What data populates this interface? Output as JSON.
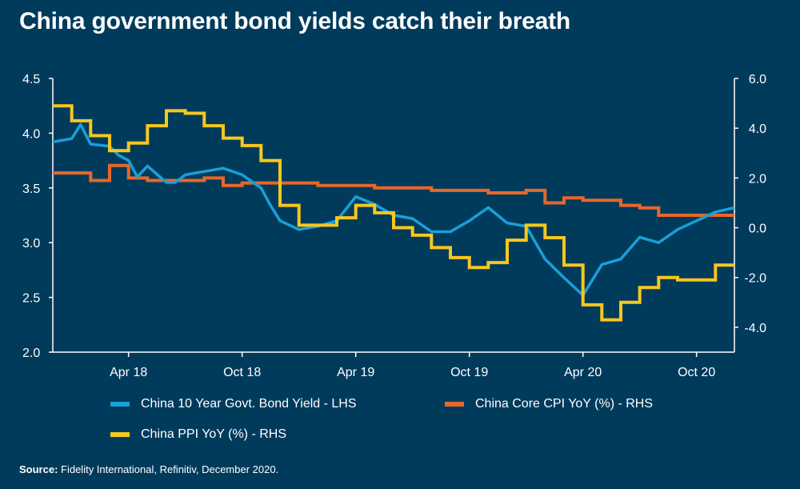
{
  "title": "China government bond yields catch their breath",
  "source": {
    "label": "Source:",
    "text": " Fidelity International, Refinitiv, December 2020."
  },
  "colors": {
    "background": "#003b5c",
    "bond": "#1a9fd8",
    "cpi": "#e8672a",
    "ppi": "#f7c71e",
    "axis": "#ffffff"
  },
  "chart_data": {
    "type": "line",
    "title": "China government bond yields catch their breath",
    "x_ticks": [
      "Apr 18",
      "Oct 18",
      "Apr 19",
      "Oct 19",
      "Apr 20",
      "Oct 20"
    ],
    "x_tick_dates": [
      "2018-04",
      "2018-10",
      "2019-04",
      "2019-10",
      "2020-04",
      "2020-10"
    ],
    "x_range": [
      "2017-12",
      "2020-12"
    ],
    "y_left": {
      "ticks": [
        "4.5",
        "4.0",
        "3.5",
        "3.0",
        "2.5",
        "2.0"
      ],
      "range": [
        2.0,
        4.5
      ]
    },
    "y_right": {
      "ticks": [
        "6.0",
        "4.0",
        "2.0",
        "0.0",
        "-2.0",
        "-4.0"
      ],
      "range": [
        -5.0,
        6.0
      ]
    },
    "legend_position": "bottom",
    "grid": false,
    "series": [
      {
        "name": "China 10 Year Govt. Bond Yield - LHS",
        "axis": "left",
        "style": "line",
        "x": [
          "2017-12",
          "2018-01",
          "2018-01-15",
          "2018-02",
          "2018-03",
          "2018-03-15",
          "2018-04",
          "2018-04-15",
          "2018-05",
          "2018-06",
          "2018-06-15",
          "2018-07",
          "2018-08",
          "2018-09",
          "2018-10",
          "2018-11",
          "2018-11-15",
          "2018-12",
          "2019-01",
          "2019-02",
          "2019-03",
          "2019-04",
          "2019-05",
          "2019-06",
          "2019-07",
          "2019-08",
          "2019-09",
          "2019-10",
          "2019-11",
          "2019-12",
          "2020-01",
          "2020-02",
          "2020-03",
          "2020-04",
          "2020-05",
          "2020-06",
          "2020-07",
          "2020-08",
          "2020-09",
          "2020-10",
          "2020-11",
          "2020-12"
        ],
        "y": [
          3.92,
          3.95,
          4.08,
          3.9,
          3.88,
          3.8,
          3.75,
          3.6,
          3.7,
          3.55,
          3.55,
          3.62,
          3.65,
          3.68,
          3.62,
          3.5,
          3.35,
          3.2,
          3.12,
          3.15,
          3.2,
          3.42,
          3.35,
          3.25,
          3.22,
          3.1,
          3.1,
          3.2,
          3.32,
          3.18,
          3.15,
          2.85,
          2.68,
          2.52,
          2.8,
          2.85,
          3.05,
          3.0,
          3.12,
          3.2,
          3.28,
          3.32
        ]
      },
      {
        "name": "China Core CPI YoY (%) - RHS",
        "axis": "right",
        "style": "step",
        "x": [
          "2017-12",
          "2018-01",
          "2018-02",
          "2018-03",
          "2018-04",
          "2018-05",
          "2018-06",
          "2018-07",
          "2018-08",
          "2018-09",
          "2018-10",
          "2018-11",
          "2018-12",
          "2019-01",
          "2019-02",
          "2019-03",
          "2019-04",
          "2019-05",
          "2019-06",
          "2019-07",
          "2019-08",
          "2019-09",
          "2019-10",
          "2019-11",
          "2019-12",
          "2020-01",
          "2020-02",
          "2020-03",
          "2020-04",
          "2020-05",
          "2020-06",
          "2020-07",
          "2020-08",
          "2020-09",
          "2020-10",
          "2020-11",
          "2020-12"
        ],
        "y": [
          2.2,
          2.2,
          1.9,
          2.5,
          2.0,
          1.9,
          1.9,
          1.9,
          2.0,
          1.7,
          1.8,
          1.8,
          1.8,
          1.8,
          1.7,
          1.7,
          1.7,
          1.6,
          1.6,
          1.6,
          1.5,
          1.5,
          1.5,
          1.4,
          1.4,
          1.5,
          1.0,
          1.2,
          1.1,
          1.1,
          0.9,
          0.8,
          0.5,
          0.5,
          0.5,
          0.5,
          0.5
        ]
      },
      {
        "name": "China PPI YoY (%) - RHS",
        "axis": "right",
        "style": "step",
        "x": [
          "2017-12",
          "2018-01",
          "2018-02",
          "2018-03",
          "2018-04",
          "2018-05",
          "2018-06",
          "2018-07",
          "2018-08",
          "2018-09",
          "2018-10",
          "2018-11",
          "2018-12",
          "2019-01",
          "2019-02",
          "2019-03",
          "2019-04",
          "2019-05",
          "2019-06",
          "2019-07",
          "2019-08",
          "2019-09",
          "2019-10",
          "2019-11",
          "2019-12",
          "2020-01",
          "2020-02",
          "2020-03",
          "2020-04",
          "2020-05",
          "2020-06",
          "2020-07",
          "2020-08",
          "2020-09",
          "2020-10",
          "2020-11",
          "2020-12"
        ],
        "y": [
          4.9,
          4.3,
          3.7,
          3.1,
          3.4,
          4.1,
          4.7,
          4.6,
          4.1,
          3.6,
          3.3,
          2.7,
          0.9,
          0.1,
          0.1,
          0.4,
          0.9,
          0.6,
          0.0,
          -0.3,
          -0.8,
          -1.2,
          -1.6,
          -1.4,
          -0.5,
          0.1,
          -0.4,
          -1.5,
          -3.1,
          -3.7,
          -3.0,
          -2.4,
          -2.0,
          -2.1,
          -2.1,
          -1.5,
          -1.5
        ]
      }
    ]
  }
}
